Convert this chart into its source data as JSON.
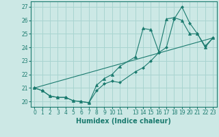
{
  "xlabel": "Humidex (Indice chaleur)",
  "bg_color": "#cce8e5",
  "grid_color": "#a8d4d0",
  "line_color": "#1a7a6e",
  "ylim": [
    19.6,
    27.4
  ],
  "xlim": [
    -0.5,
    23.5
  ],
  "yticks": [
    20,
    21,
    22,
    23,
    24,
    25,
    26,
    27
  ],
  "series": [
    {
      "x": [
        0,
        1,
        2,
        3,
        4,
        5,
        6,
        7,
        8,
        9,
        10,
        11,
        13,
        14,
        15,
        16,
        17,
        18,
        19,
        20,
        21,
        22,
        23
      ],
      "y": [
        21.0,
        20.8,
        20.4,
        20.3,
        20.3,
        20.05,
        20.0,
        19.9,
        20.8,
        21.3,
        21.5,
        21.4,
        22.2,
        22.5,
        23.0,
        23.6,
        24.0,
        26.1,
        27.0,
        25.8,
        25.0,
        24.1,
        24.7
      ],
      "marker": "D",
      "markersize": 2.0
    },
    {
      "x": [
        0,
        1,
        2,
        3,
        4,
        5,
        6,
        7,
        8,
        9,
        10,
        11,
        13,
        14,
        15,
        16,
        17,
        18,
        19,
        20,
        21,
        22,
        23
      ],
      "y": [
        21.0,
        20.8,
        20.4,
        20.3,
        20.3,
        20.05,
        20.0,
        19.9,
        21.2,
        21.7,
        22.0,
        22.6,
        23.3,
        25.4,
        25.3,
        23.7,
        26.1,
        26.2,
        26.0,
        25.0,
        25.0,
        24.0,
        24.7
      ],
      "marker": "^",
      "markersize": 3.0
    },
    {
      "x": [
        0,
        23
      ],
      "y": [
        21.0,
        24.7
      ],
      "marker": null,
      "markersize": 0
    }
  ]
}
